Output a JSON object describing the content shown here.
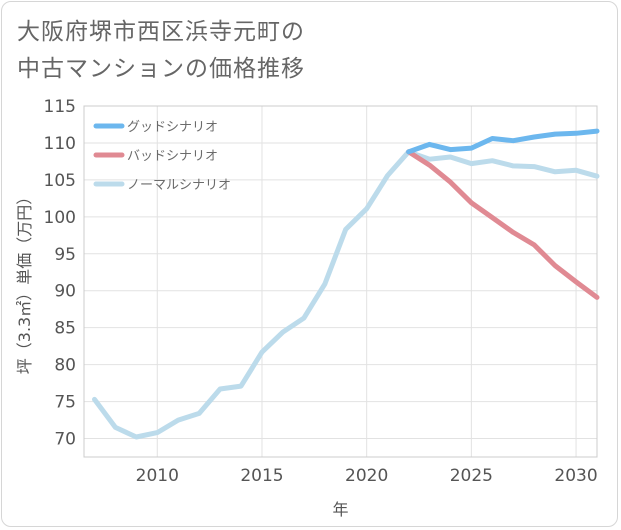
{
  "title_lines": [
    "大阪府堺市西区浜寺元町の",
    "中古マンションの価格推移"
  ],
  "chart_data": {
    "type": "line",
    "title": "大阪府堺市西区浜寺元町の中古マンションの価格推移",
    "xlabel": "年",
    "ylabel": "坪（3.3㎡）単価（万円）",
    "xlim": [
      2006.5,
      2031
    ],
    "ylim": [
      67.5,
      115
    ],
    "xticks": [
      2010,
      2015,
      2020,
      2025,
      2030
    ],
    "yticks": [
      70,
      75,
      80,
      85,
      90,
      95,
      100,
      105,
      110,
      115
    ],
    "grid": true,
    "legend_position": "top-left",
    "series": [
      {
        "name": "グッドシナリオ",
        "color": "#6cb7ee",
        "x": [
          2022,
          2023,
          2024,
          2025,
          2026,
          2027,
          2028,
          2029,
          2030,
          2031
        ],
        "y": [
          108.8,
          109.8,
          109.1,
          109.3,
          110.6,
          110.3,
          110.8,
          111.2,
          111.3,
          111.6
        ]
      },
      {
        "name": "バッドシナリオ",
        "color": "#e08a93",
        "x": [
          2022,
          2023,
          2024,
          2025,
          2026,
          2027,
          2028,
          2029,
          2030,
          2031
        ],
        "y": [
          108.8,
          107.0,
          104.7,
          101.9,
          99.9,
          97.9,
          96.2,
          93.4,
          91.2,
          89.1
        ]
      },
      {
        "name": "ノーマルシナリオ",
        "color": "#bcdbeb",
        "x": [
          2007,
          2008,
          2009,
          2010,
          2011,
          2012,
          2013,
          2014,
          2015,
          2016,
          2017,
          2018,
          2019,
          2020,
          2021,
          2022,
          2023,
          2024,
          2025,
          2026,
          2027,
          2028,
          2029,
          2030,
          2031
        ],
        "y": [
          75.3,
          71.5,
          70.2,
          70.8,
          72.5,
          73.4,
          76.7,
          77.1,
          81.7,
          84.4,
          86.3,
          90.9,
          98.3,
          101.1,
          105.6,
          108.8,
          107.8,
          108.1,
          107.2,
          107.6,
          106.9,
          106.8,
          106.1,
          106.3,
          105.5
        ]
      }
    ]
  }
}
